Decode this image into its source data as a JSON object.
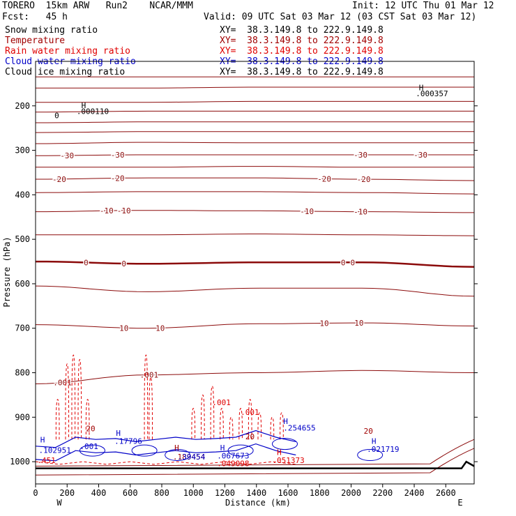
{
  "header": {
    "model": "TORERO  15km ARW   Run2    NCAR/MMM",
    "init": "Init: 12 UTC Thu 01 Mar 12",
    "fcst": "Fcst:   45 h",
    "valid": "Valid: 09 UTC Sat 03 Mar 12 (03 CST Sat 03 Mar 12)"
  },
  "legend": [
    {
      "name": "Snow mixing ratio",
      "xy": "XY=  38.3.149.8 to 222.9.149.8",
      "color": "#000000"
    },
    {
      "name": "Temperature",
      "xy": "XY=  38.3.149.8 to 222.9.149.8",
      "color": "#a00000"
    },
    {
      "name": "Rain water mixing ratio",
      "xy": "XY=  38.3.149.8 to 222.9.149.8",
      "color": "#e00000"
    },
    {
      "name": "Cloud water mixing ratio",
      "xy": "XY=  38.3.149.8 to 222.9.149.8",
      "color": "#0000c8"
    },
    {
      "name": "Cloud ice mixing ratio",
      "xy": "XY=  38.3.149.8 to 222.9.149.8",
      "color": "#000000"
    }
  ],
  "chart_data": {
    "type": "line",
    "xlabel": "Distance (km)",
    "ylabel": "Pressure (hPa)",
    "xlim": [
      0,
      2780
    ],
    "ylim": [
      1050,
      100
    ],
    "x_ticks": [
      0,
      200,
      400,
      600,
      800,
      1000,
      1200,
      1400,
      1600,
      1800,
      2000,
      2200,
      2400,
      2600
    ],
    "y_ticks": [
      200,
      300,
      400,
      500,
      600,
      700,
      800,
      900,
      1000
    ],
    "y_tick_labels": [
      "200",
      "300",
      "400",
      "500",
      "600",
      "700",
      "800",
      "900",
      "1000"
    ],
    "x_tick_labels": [
      "0",
      "200",
      "400",
      "600",
      "800",
      "1000",
      "1200",
      "1400",
      "1600",
      "1800",
      "2000",
      "2200",
      "2400",
      "2600"
    ],
    "west_label": "W",
    "east_label": "E",
    "temperature_contours": [
      {
        "p": [
          135,
          135,
          135,
          135,
          135
        ]
      },
      {
        "p": [
          160,
          160,
          158,
          158,
          158
        ]
      },
      {
        "p": [
          192,
          192,
          190,
          190,
          190
        ]
      },
      {
        "p": [
          214,
          212,
          212,
          212,
          212
        ]
      },
      {
        "p": [
          238,
          236,
          236,
          236,
          236
        ]
      },
      {
        "p": [
          260,
          258,
          258,
          258,
          258
        ]
      },
      {
        "p": [
          285,
          282,
          283,
          283,
          283
        ]
      },
      {
        "p": [
          312,
          310,
          310,
          310,
          310
        ],
        "label": "-30",
        "label_x": [
          200,
          520,
          2060,
          2440
        ]
      },
      {
        "p": [
          338,
          338,
          336,
          338,
          338
        ]
      },
      {
        "p": [
          365,
          362,
          362,
          365,
          368
        ],
        "label": "-20",
        "label_x": [
          150,
          520,
          1830,
          2080
        ]
      },
      {
        "p": [
          395,
          393,
          393,
          395,
          398
        ]
      },
      {
        "p": [
          438,
          435,
          436,
          438,
          440
        ],
        "label": "-10",
        "label_x": [
          450,
          560,
          1720,
          2060
        ]
      },
      {
        "p": [
          490,
          490,
          488,
          490,
          492
        ]
      },
      {
        "p": [
          550,
          555,
          552,
          552,
          562
        ],
        "label": "0",
        "label_x": [
          320,
          560,
          1950,
          2010
        ],
        "bold": true
      },
      {
        "p": [
          605,
          618,
          610,
          610,
          628
        ]
      },
      {
        "p": [
          692,
          700,
          690,
          688,
          695
        ],
        "label": "10",
        "label_x": [
          560,
          790,
          1830,
          2050
        ]
      },
      {
        "p": [
          825,
          805,
          800,
          795,
          800
        ],
        "label": ".001",
        "label_x": [
          170,
          720
        ]
      }
    ],
    "annotations": [
      {
        "text": "H",
        "x": 290,
        "p": 205,
        "color": "#000000"
      },
      {
        "text": ".000110",
        "x": 260,
        "p": 218,
        "color": "#000000"
      },
      {
        "text": "0",
        "x": 120,
        "p": 228,
        "color": "#000000"
      },
      {
        "text": "H",
        "x": 2430,
        "p": 165,
        "color": "#000000"
      },
      {
        "text": ".000357",
        "x": 2410,
        "p": 178,
        "color": "#000000"
      },
      {
        "text": ".001",
        "x": 1120,
        "p": 873,
        "color": "#e00000"
      },
      {
        "text": ".001",
        "x": 1300,
        "p": 895,
        "color": "#e00000"
      },
      {
        "text": "20",
        "x": 320,
        "p": 932,
        "color": "#a00000"
      },
      {
        "text": "20",
        "x": 1330,
        "p": 950,
        "color": "#a00000"
      },
      {
        "text": "20",
        "x": 2080,
        "p": 937,
        "color": "#a00000"
      },
      {
        "text": "H",
        "x": 30,
        "p": 957,
        "color": "#0000c8"
      },
      {
        "text": ".102951",
        "x": 20,
        "p": 980,
        "color": "#0000c8"
      },
      {
        "text": ".001",
        "x": 280,
        "p": 972,
        "color": "#0000c8"
      },
      {
        "text": "H",
        "x": 510,
        "p": 942,
        "color": "#0000c8"
      },
      {
        "text": ".17796",
        "x": 500,
        "p": 960,
        "color": "#0000c8"
      },
      {
        "text": "H",
        "x": 880,
        "p": 975,
        "color": "#a00000"
      },
      {
        "text": ".189454",
        "x": 870,
        "p": 995,
        "color": "#a00000"
      },
      {
        "text": ".39454",
        "x": 900,
        "p": 995,
        "color": "#0000c8"
      },
      {
        "text": "H",
        "x": 1170,
        "p": 975,
        "color": "#0000c8"
      },
      {
        "text": ".067673",
        "x": 1150,
        "p": 993,
        "color": "#0000c8"
      },
      {
        "text": ".049098",
        "x": 1150,
        "p": 1010,
        "color": "#e00000"
      },
      {
        "text": "H",
        "x": 1570,
        "p": 915,
        "color": "#0000c8"
      },
      {
        "text": ".254655",
        "x": 1570,
        "p": 930,
        "color": "#0000c8"
      },
      {
        "text": "H",
        "x": 1530,
        "p": 985,
        "color": "#e00000"
      },
      {
        "text": ".051373",
        "x": 1500,
        "p": 1003,
        "color": "#e00000"
      },
      {
        "text": "H",
        "x": 2130,
        "p": 960,
        "color": "#0000c8"
      },
      {
        "text": ".021719",
        "x": 2100,
        "p": 978,
        "color": "#0000c8"
      },
      {
        "text": ".451",
        "x": 10,
        "p": 1003,
        "color": "#e00000"
      }
    ]
  }
}
